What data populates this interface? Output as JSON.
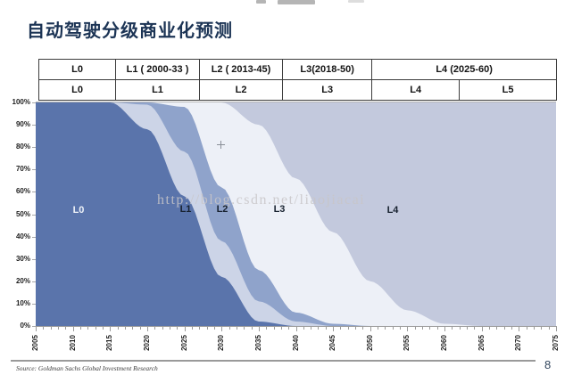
{
  "page": {
    "title": "自动驾驶分级商业化预测",
    "watermark": "http://blog.csdn.net/liaojiacai",
    "source": "Source: Goldman Sachs Global Investment Research",
    "page_number": "8"
  },
  "roadmap_table": {
    "rows": [
      {
        "cells": [
          {
            "label": "L0",
            "w": 14.7
          },
          {
            "label": "L1 ( 2000-33 )",
            "w": 16.2
          },
          {
            "label": "L2 ( 2013-45)",
            "w": 16.1
          },
          {
            "label": "L3(2018-50)",
            "w": 17.3
          },
          {
            "label": "L4  (2025-60)",
            "w": 35.7
          }
        ]
      },
      {
        "cells": [
          {
            "label": "L0",
            "w": 14.7
          },
          {
            "label": "L1",
            "w": 16.2
          },
          {
            "label": "L2",
            "w": 16.1
          },
          {
            "label": "L3",
            "w": 17.3
          },
          {
            "label": "L4",
            "w": 16.9
          },
          {
            "label": "L5",
            "w": 18.8
          }
        ]
      }
    ]
  },
  "chart_data": {
    "type": "area",
    "stacked": true,
    "title": "",
    "xlabel": "",
    "ylabel": "",
    "grid": false,
    "legend_position": "none",
    "ylim": [
      0,
      100
    ],
    "xlim": [
      2005,
      2075
    ],
    "x_major_tick_step": 5,
    "x_minor_tick_step": 1,
    "x": [
      2005,
      2010,
      2015,
      2020,
      2025,
      2030,
      2035,
      2040,
      2045,
      2050,
      2055,
      2060,
      2065,
      2070,
      2075
    ],
    "y_tick_labels": [
      "100%",
      "90%",
      "80%",
      "70%",
      "60%",
      "50%",
      "40%",
      "30%",
      "20%",
      "10%",
      "0%"
    ],
    "series": [
      {
        "name": "L0",
        "color": "#5a74ab",
        "values": [
          100,
          100,
          100,
          88,
          58,
          22,
          2,
          0,
          0,
          0,
          0,
          0,
          0,
          0,
          0
        ]
      },
      {
        "name": "L1",
        "color": "#ccd4e7",
        "values": [
          0,
          0,
          0,
          11,
          20,
          16,
          9,
          2,
          0,
          0,
          0,
          0,
          0,
          0,
          0
        ]
      },
      {
        "name": "L2",
        "color": "#8fa3cb",
        "values": [
          0,
          0,
          0,
          1,
          20,
          24,
          14,
          4,
          1,
          0,
          0,
          0,
          0,
          0,
          0
        ]
      },
      {
        "name": "L3",
        "color": "#edf0f7",
        "values": [
          0,
          0,
          0,
          0,
          2,
          38,
          65,
          60,
          41,
          20,
          7,
          1,
          0,
          0,
          0
        ]
      },
      {
        "name": "L4",
        "color": "#c3c9dd",
        "values": [
          0,
          0,
          0,
          0,
          0,
          0,
          10,
          34,
          58,
          80,
          93,
          99,
          100,
          100,
          100
        ]
      }
    ],
    "labels": [
      {
        "text": "L0",
        "x": 88,
        "y": 236,
        "color": "#eef2f8"
      },
      {
        "text": "L1",
        "x": 208,
        "y": 235,
        "color": "#17212f"
      },
      {
        "text": "L2",
        "x": 249,
        "y": 235,
        "color": "#17212f"
      },
      {
        "text": "L3",
        "x": 313,
        "y": 235,
        "color": "#17212f"
      },
      {
        "text": "L4",
        "x": 440,
        "y": 236,
        "color": "#17212f"
      }
    ]
  }
}
